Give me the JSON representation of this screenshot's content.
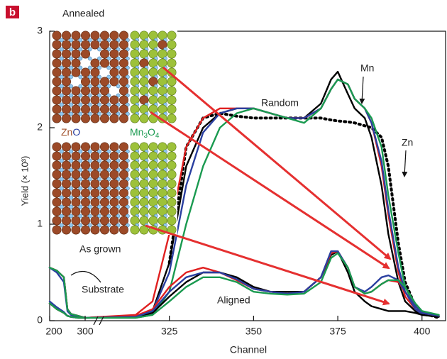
{
  "chart_data": {
    "type": "line",
    "panel": "b",
    "xlabel": "Channel",
    "ylabel": "Yield (× 10³)",
    "annotations": {
      "annealed": "Annealed",
      "as_grown": "As grown",
      "random": "Random",
      "aligned": "Aligned",
      "substrate": "Substrate",
      "mn": "Mn",
      "zn": "Zn"
    },
    "zno_label": [
      "Zn",
      "O"
    ],
    "mn3o4_label": [
      "Mn",
      "3",
      "O",
      "4"
    ],
    "xlim": [
      200,
      407
    ],
    "xticks": [
      200,
      300,
      325,
      350,
      375,
      400
    ],
    "ylim": [
      0,
      3
    ],
    "yticks": [
      0,
      1,
      2,
      3
    ],
    "x": [
      200,
      220,
      240,
      250,
      260,
      280,
      300,
      315,
      320,
      325,
      330,
      335,
      340,
      345,
      350,
      355,
      360,
      365,
      370,
      373,
      375,
      378,
      380,
      383,
      385,
      388,
      390,
      393,
      395,
      398,
      400,
      405
    ],
    "series": [
      {
        "color": "#000000",
        "style": "dotted",
        "values": [
          null,
          null,
          null,
          null,
          null,
          null,
          null,
          null,
          null,
          0.6,
          1.8,
          2.1,
          2.15,
          2.12,
          2.1,
          2.1,
          2.1,
          2.1,
          2.1,
          2.08,
          2.07,
          2.06,
          2.05,
          2.02,
          2.0,
          1.9,
          1.6,
          0.8,
          0.4,
          0.15,
          0.08,
          0.03
        ]
      },
      {
        "color": "#000000",
        "style": "solid",
        "values": [
          0.55,
          0.52,
          0.45,
          0.12,
          0.07,
          0.05,
          0.03,
          0.04,
          0.1,
          0.6,
          1.6,
          2.0,
          2.15,
          2.2,
          2.2,
          2.15,
          2.1,
          2.1,
          2.25,
          2.5,
          2.58,
          2.35,
          2.2,
          2.1,
          1.9,
          1.4,
          0.9,
          0.4,
          0.2,
          0.1,
          0.06,
          0.04
        ]
      },
      {
        "color": "#e02020",
        "style": "solid",
        "values": [
          0.55,
          0.52,
          0.45,
          0.12,
          0.07,
          0.05,
          0.03,
          0.06,
          0.2,
          0.9,
          1.8,
          2.1,
          2.2,
          2.2,
          2.2,
          2.15,
          2.1,
          2.1,
          2.2,
          2.4,
          2.5,
          2.45,
          2.3,
          2.2,
          2.05,
          1.6,
          1.1,
          0.5,
          0.25,
          0.12,
          0.07,
          0.05
        ]
      },
      {
        "color": "#2a3fa0",
        "style": "solid",
        "values": [
          0.55,
          0.5,
          0.4,
          0.1,
          0.06,
          0.04,
          0.03,
          0.04,
          0.1,
          0.5,
          1.4,
          1.95,
          2.15,
          2.2,
          2.2,
          2.15,
          2.1,
          2.1,
          2.2,
          2.4,
          2.5,
          2.45,
          2.3,
          2.2,
          2.05,
          1.65,
          1.15,
          0.55,
          0.3,
          0.12,
          0.07,
          0.05
        ]
      },
      {
        "color": "#1a9a50",
        "style": "solid",
        "values": [
          0.55,
          0.52,
          0.45,
          0.12,
          0.07,
          0.05,
          0.03,
          0.03,
          0.06,
          0.3,
          1.0,
          1.6,
          2.0,
          2.15,
          2.2,
          2.15,
          2.1,
          2.05,
          2.2,
          2.4,
          2.5,
          2.45,
          2.3,
          2.2,
          2.1,
          1.8,
          1.3,
          0.7,
          0.35,
          0.15,
          0.08,
          0.05
        ]
      },
      {
        "color": "#000000",
        "style": "solid",
        "values": [
          0.18,
          0.12,
          0.08,
          0.05,
          0.04,
          0.03,
          0.03,
          0.04,
          0.08,
          0.25,
          0.4,
          0.5,
          0.5,
          0.45,
          0.35,
          0.3,
          0.3,
          0.3,
          0.45,
          0.68,
          0.72,
          0.5,
          0.3,
          0.2,
          0.15,
          0.12,
          0.1,
          0.1,
          0.1,
          0.08,
          0.06,
          0.04
        ]
      },
      {
        "color": "#e02020",
        "style": "solid",
        "values": [
          0.18,
          0.12,
          0.08,
          0.05,
          0.04,
          0.03,
          0.03,
          0.05,
          0.12,
          0.35,
          0.5,
          0.55,
          0.5,
          0.42,
          0.33,
          0.3,
          0.28,
          0.3,
          0.45,
          0.7,
          0.72,
          0.55,
          0.35,
          0.28,
          0.3,
          0.38,
          0.42,
          0.4,
          0.3,
          0.15,
          0.08,
          0.05
        ]
      },
      {
        "color": "#2a3fa0",
        "style": "solid",
        "values": [
          0.2,
          0.14,
          0.09,
          0.05,
          0.04,
          0.03,
          0.03,
          0.04,
          0.1,
          0.3,
          0.45,
          0.5,
          0.5,
          0.43,
          0.33,
          0.3,
          0.28,
          0.3,
          0.45,
          0.72,
          0.72,
          0.55,
          0.35,
          0.3,
          0.35,
          0.45,
          0.47,
          0.42,
          0.3,
          0.15,
          0.08,
          0.05
        ]
      },
      {
        "color": "#1a9a50",
        "style": "solid",
        "values": [
          0.18,
          0.12,
          0.08,
          0.05,
          0.04,
          0.03,
          0.03,
          0.03,
          0.06,
          0.2,
          0.35,
          0.45,
          0.45,
          0.4,
          0.3,
          0.28,
          0.27,
          0.28,
          0.4,
          0.65,
          0.7,
          0.55,
          0.35,
          0.28,
          0.3,
          0.38,
          0.42,
          0.42,
          0.35,
          0.18,
          0.1,
          0.06
        ]
      }
    ]
  }
}
